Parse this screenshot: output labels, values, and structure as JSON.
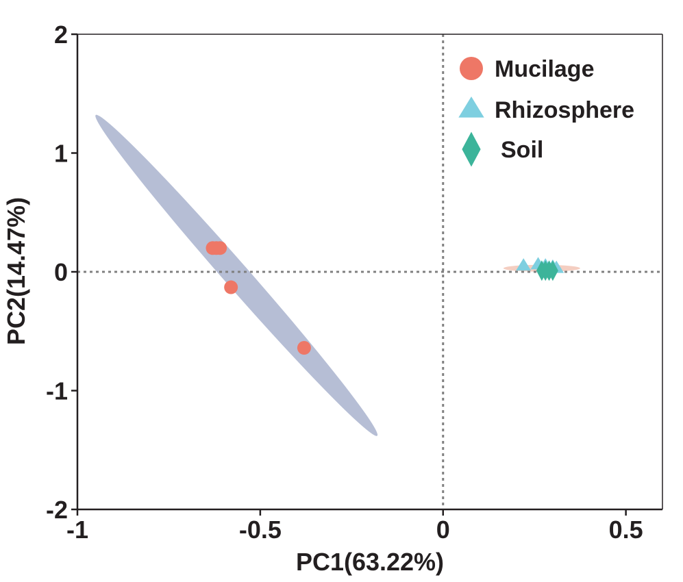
{
  "chart_data": {
    "type": "scatter",
    "title": "",
    "xlabel": "PC1(63.22%)",
    "ylabel": "PC2(14.47%)",
    "xlim": [
      -1,
      0.6
    ],
    "ylim": [
      -2,
      2
    ],
    "xticks": [
      -1,
      -0.5,
      0,
      0.5
    ],
    "xtick_labels": [
      "-1",
      "-0.5",
      "0",
      "0.5"
    ],
    "yticks": [
      -2,
      -1,
      0,
      1,
      2
    ],
    "ytick_labels": [
      "-2",
      "-1",
      "0",
      "1",
      "2"
    ],
    "grid": false,
    "reference_lines": {
      "x": 0,
      "y": 0,
      "style": "dotted"
    },
    "legend_position": "top-right",
    "series": [
      {
        "name": "Mucilage",
        "marker": "circle",
        "color": "#ee7766",
        "points": [
          [
            -0.63,
            0.2
          ],
          [
            -0.62,
            0.2
          ],
          [
            -0.61,
            0.2
          ],
          [
            -0.58,
            -0.13
          ],
          [
            -0.38,
            -0.64
          ]
        ]
      },
      {
        "name": "Rhizosphere",
        "marker": "triangle",
        "color": "#7ecfe0",
        "points": [
          [
            0.22,
            0.05
          ],
          [
            0.26,
            0.06
          ],
          [
            0.28,
            0.05
          ],
          [
            0.3,
            0.04
          ],
          [
            0.31,
            0.03
          ]
        ]
      },
      {
        "name": "Soil",
        "marker": "diamond",
        "color": "#3cb49a",
        "points": [
          [
            0.27,
            0.01
          ],
          [
            0.28,
            0.01
          ],
          [
            0.29,
            0.01
          ],
          [
            0.3,
            0.01
          ]
        ]
      }
    ],
    "ellipses": [
      {
        "group": "Mucilage",
        "color": "#a9b3ce",
        "center": [
          -0.567,
          -0.03
        ],
        "axis_points": [
          [
            -0.95,
            1.32
          ],
          [
            -0.18,
            -1.38
          ]
        ],
        "minor_half_width": 0.13
      },
      {
        "group": "Rhizosphere",
        "color": "#f2c6b6",
        "center": [
          0.27,
          0.03
        ],
        "axis_points": [
          [
            0.165,
            0.03
          ],
          [
            0.375,
            0.03
          ]
        ],
        "minor_half_width": 0.02
      }
    ]
  }
}
